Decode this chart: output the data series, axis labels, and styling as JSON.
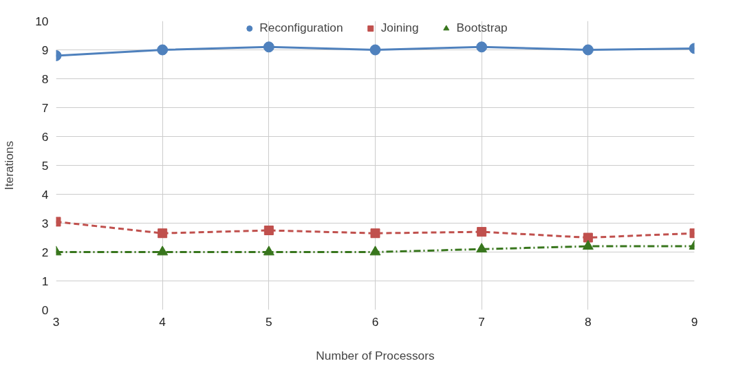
{
  "chart_data": {
    "type": "line",
    "xlabel": "Number of Processors",
    "ylabel": "Iterations",
    "x": [
      3,
      4,
      5,
      6,
      7,
      8,
      9
    ],
    "series": [
      {
        "name": "Reconfiguration",
        "color": "#4f81bd",
        "marker": "circle",
        "line_style": "solid",
        "values": [
          8.8,
          9.0,
          9.1,
          9.0,
          9.1,
          9.0,
          9.05
        ]
      },
      {
        "name": "Joining",
        "color": "#c0504d",
        "marker": "square",
        "line_style": "dashed",
        "values": [
          3.05,
          2.65,
          2.75,
          2.65,
          2.7,
          2.5,
          2.65
        ]
      },
      {
        "name": "Bootstrap",
        "color": "#38761d",
        "marker": "triangle",
        "line_style": "dashdot",
        "values": [
          2.0,
          2.0,
          2.0,
          2.0,
          2.1,
          2.2,
          2.2
        ]
      }
    ],
    "xlim": [
      3,
      9
    ],
    "xticks": [
      3,
      4,
      5,
      6,
      7,
      8,
      9
    ],
    "ylim": [
      0,
      10
    ],
    "yticks": [
      0,
      1,
      2,
      3,
      4,
      5,
      6,
      7,
      8,
      9,
      10
    ],
    "grid": true,
    "legend": "top"
  }
}
